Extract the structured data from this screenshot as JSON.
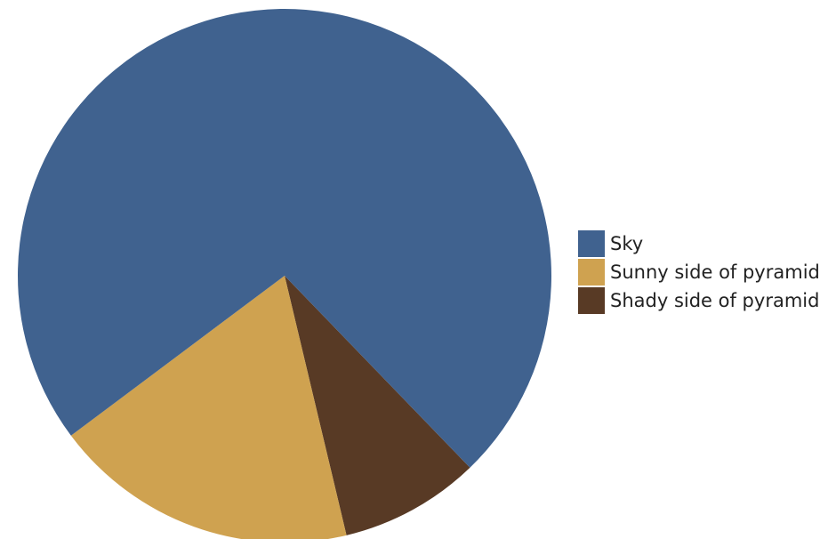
{
  "chart_data": {
    "type": "pie",
    "title": "",
    "start": "bottom, counter-clockwise",
    "slices": [
      {
        "label": "Sky",
        "value": 0.73,
        "color": "#40628f"
      },
      {
        "label": "Shady side of pyramid",
        "value": 0.085,
        "color": "#583a25"
      },
      {
        "label": "Sunny side of pyramid",
        "value": 0.185,
        "color": "#cfa250"
      }
    ],
    "legend_order": [
      "Sky",
      "Sunny side of pyramid",
      "Shady side of pyramid"
    ],
    "legend_placement": "right"
  }
}
